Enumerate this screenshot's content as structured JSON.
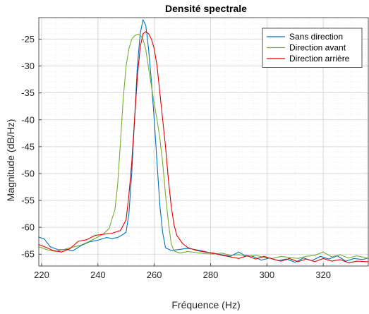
{
  "chart_data": {
    "type": "line",
    "title": "Densité spectrale",
    "xlabel": "Fréquence (Hz)",
    "ylabel": "Magnitude (dB/Hz)",
    "xlim": [
      219,
      336
    ],
    "ylim": [
      -67.2,
      -21.0
    ],
    "x_ticks": [
      220,
      240,
      260,
      280,
      300,
      320
    ],
    "x_tick_labels": [
      "220",
      "240",
      "260",
      "280",
      "300",
      "320"
    ],
    "y_ticks": [
      -25,
      -30,
      -35,
      -40,
      -45,
      -50,
      -55,
      -60,
      -65
    ],
    "y_tick_labels": [
      "-25",
      "-30",
      "-35",
      "-40",
      "-45",
      "-50",
      "-55",
      "-60",
      "-65"
    ],
    "grid": true,
    "minor_grid": true,
    "legend_position": "top-right",
    "series": [
      {
        "name": "Sans direction",
        "color": "#0072BD",
        "points": [
          [
            219,
            -61.8
          ],
          [
            221,
            -62.2
          ],
          [
            223,
            -63.6
          ],
          [
            226,
            -64.2
          ],
          [
            229,
            -64.1
          ],
          [
            231,
            -64.4
          ],
          [
            234,
            -63.4
          ],
          [
            237,
            -62.7
          ],
          [
            240,
            -62.4
          ],
          [
            243,
            -61.9
          ],
          [
            245,
            -62.1
          ],
          [
            247,
            -61.9
          ],
          [
            249,
            -61.3
          ],
          [
            250,
            -60.9
          ],
          [
            251,
            -57.5
          ],
          [
            252,
            -50.0
          ],
          [
            253,
            -40.0
          ],
          [
            254,
            -30.0
          ],
          [
            255,
            -24.0
          ],
          [
            256,
            -21.4
          ],
          [
            257,
            -22.5
          ],
          [
            258,
            -27.0
          ],
          [
            259,
            -33.0
          ],
          [
            260,
            -40.0
          ],
          [
            261,
            -48.0
          ],
          [
            262,
            -56.0
          ],
          [
            263,
            -61.0
          ],
          [
            264,
            -63.8
          ],
          [
            266,
            -64.3
          ],
          [
            269,
            -64.1
          ],
          [
            272,
            -63.9
          ],
          [
            275,
            -64.2
          ],
          [
            278,
            -64.5
          ],
          [
            281,
            -64.9
          ],
          [
            284,
            -65.1
          ],
          [
            287,
            -65.4
          ],
          [
            290,
            -64.6
          ],
          [
            292,
            -65.2
          ],
          [
            295,
            -65.4
          ],
          [
            298,
            -66.1
          ],
          [
            301,
            -65.7
          ],
          [
            304,
            -66.2
          ],
          [
            307,
            -65.9
          ],
          [
            310,
            -66.5
          ],
          [
            313,
            -65.7
          ],
          [
            316,
            -66.2
          ],
          [
            319,
            -65.4
          ],
          [
            322,
            -65.9
          ],
          [
            325,
            -65.3
          ],
          [
            328,
            -66.3
          ],
          [
            331,
            -65.8
          ],
          [
            334,
            -66.0
          ],
          [
            336,
            -65.7
          ]
        ]
      },
      {
        "name": "Direction avant",
        "color": "#77AC30",
        "points": [
          [
            219,
            -63.6
          ],
          [
            222,
            -64.2
          ],
          [
            225,
            -64.5
          ],
          [
            228,
            -64.1
          ],
          [
            231,
            -63.7
          ],
          [
            234,
            -63.3
          ],
          [
            237,
            -62.6
          ],
          [
            240,
            -61.8
          ],
          [
            242,
            -61.2
          ],
          [
            244,
            -60.2
          ],
          [
            245,
            -58.4
          ],
          [
            246,
            -56.8
          ],
          [
            247,
            -52.0
          ],
          [
            248,
            -44.0
          ],
          [
            249,
            -36.0
          ],
          [
            250,
            -30.0
          ],
          [
            251,
            -26.8
          ],
          [
            252,
            -25.0
          ],
          [
            253,
            -24.4
          ],
          [
            254,
            -24.1
          ],
          [
            255,
            -24.2
          ],
          [
            256,
            -25.0
          ],
          [
            257,
            -27.0
          ],
          [
            258,
            -30.5
          ],
          [
            259,
            -33.8
          ],
          [
            260,
            -37.0
          ],
          [
            261,
            -40.0
          ],
          [
            262,
            -43.5
          ],
          [
            263,
            -48.0
          ],
          [
            264,
            -54.0
          ],
          [
            265,
            -59.0
          ],
          [
            266,
            -63.0
          ],
          [
            267,
            -64.4
          ],
          [
            269,
            -64.8
          ],
          [
            272,
            -64.5
          ],
          [
            275,
            -64.7
          ],
          [
            278,
            -64.9
          ],
          [
            281,
            -65.0
          ],
          [
            284,
            -64.8
          ],
          [
            287,
            -65.2
          ],
          [
            290,
            -65.1
          ],
          [
            293,
            -65.4
          ],
          [
            296,
            -65.2
          ],
          [
            299,
            -65.6
          ],
          [
            302,
            -65.8
          ],
          [
            305,
            -65.4
          ],
          [
            308,
            -65.6
          ],
          [
            311,
            -65.8
          ],
          [
            314,
            -65.4
          ],
          [
            317,
            -65.2
          ],
          [
            320,
            -64.6
          ],
          [
            323,
            -65.5
          ],
          [
            326,
            -65.1
          ],
          [
            329,
            -65.7
          ],
          [
            332,
            -65.3
          ],
          [
            336,
            -65.8
          ]
        ]
      },
      {
        "name": "Direction arrière",
        "color": "#E00000",
        "points": [
          [
            219,
            -63.2
          ],
          [
            221,
            -63.6
          ],
          [
            224,
            -64.3
          ],
          [
            227,
            -64.6
          ],
          [
            230,
            -64.0
          ],
          [
            233,
            -62.6
          ],
          [
            236,
            -62.3
          ],
          [
            239,
            -61.5
          ],
          [
            242,
            -61.3
          ],
          [
            245,
            -61.1
          ],
          [
            248,
            -60.6
          ],
          [
            250,
            -58.6
          ],
          [
            251,
            -54.0
          ],
          [
            252,
            -48.0
          ],
          [
            253,
            -40.0
          ],
          [
            254,
            -32.0
          ],
          [
            255,
            -26.5
          ],
          [
            256,
            -24.0
          ],
          [
            257,
            -23.6
          ],
          [
            258,
            -24.0
          ],
          [
            259,
            -25.0
          ],
          [
            260,
            -26.8
          ],
          [
            261,
            -30.0
          ],
          [
            262,
            -35.0
          ],
          [
            263,
            -40.0
          ],
          [
            264,
            -45.0
          ],
          [
            265,
            -51.0
          ],
          [
            266,
            -56.0
          ],
          [
            267,
            -59.5
          ],
          [
            268,
            -61.5
          ],
          [
            270,
            -63.0
          ],
          [
            272,
            -63.8
          ],
          [
            275,
            -64.3
          ],
          [
            278,
            -64.6
          ],
          [
            281,
            -64.8
          ],
          [
            284,
            -65.2
          ],
          [
            287,
            -65.5
          ],
          [
            290,
            -65.8
          ],
          [
            293,
            -65.3
          ],
          [
            296,
            -65.9
          ],
          [
            299,
            -65.4
          ],
          [
            302,
            -65.9
          ],
          [
            305,
            -66.3
          ],
          [
            308,
            -65.8
          ],
          [
            311,
            -66.4
          ],
          [
            314,
            -65.9
          ],
          [
            317,
            -66.4
          ],
          [
            320,
            -65.8
          ],
          [
            323,
            -66.3
          ],
          [
            326,
            -66.0
          ],
          [
            329,
            -66.6
          ],
          [
            332,
            -66.3
          ],
          [
            336,
            -66.4
          ]
        ]
      }
    ]
  }
}
